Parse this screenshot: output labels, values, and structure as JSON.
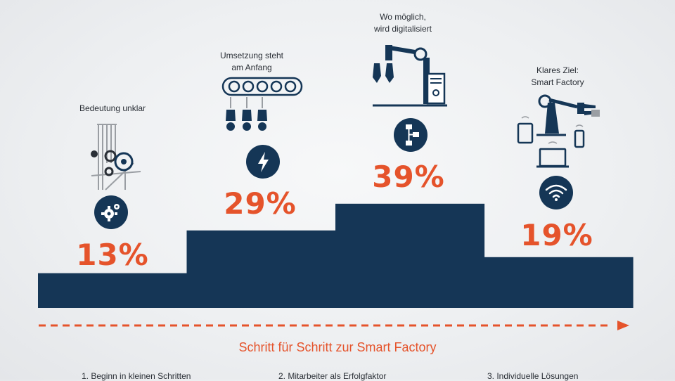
{
  "chart_data": {
    "type": "bar",
    "title": "Schritt für Schritt zur Smart Factory",
    "categories": [
      "Bedeutung unklar",
      "Umsetzung steht am Anfang",
      "Wo möglich, wird digitalisiert",
      "Klares Ziel: Smart Factory"
    ],
    "category_lines": [
      [
        "Bedeutung unklar"
      ],
      [
        "Umsetzung steht",
        "am Anfang"
      ],
      [
        "Wo möglich,",
        "wird digitalisiert"
      ],
      [
        "Klares Ziel:",
        "Smart Factory"
      ]
    ],
    "values": [
      13,
      29,
      39,
      19
    ],
    "value_labels": [
      "13%",
      "29%",
      "39%",
      "19%"
    ],
    "icons": [
      "gear-icon",
      "lightning-icon",
      "flowchart-icon",
      "wifi-icon"
    ],
    "illustrations": [
      "loom-gears-illustration",
      "conveyor-lamps-illustration",
      "robot-arm-computer-illustration",
      "robot-devices-illustration"
    ],
    "ylim": [
      0,
      40
    ],
    "grid": false,
    "legend": "none"
  },
  "colors": {
    "bar": "#153656",
    "accent": "#e5532b",
    "text": "#2a2f36",
    "icon_gray": "#9a9ea3"
  },
  "footer": [
    "1. Beginn in kleinen Schritten",
    "2. Mitarbeiter als Erfolgfaktor",
    "3. Individuelle Lösungen"
  ]
}
